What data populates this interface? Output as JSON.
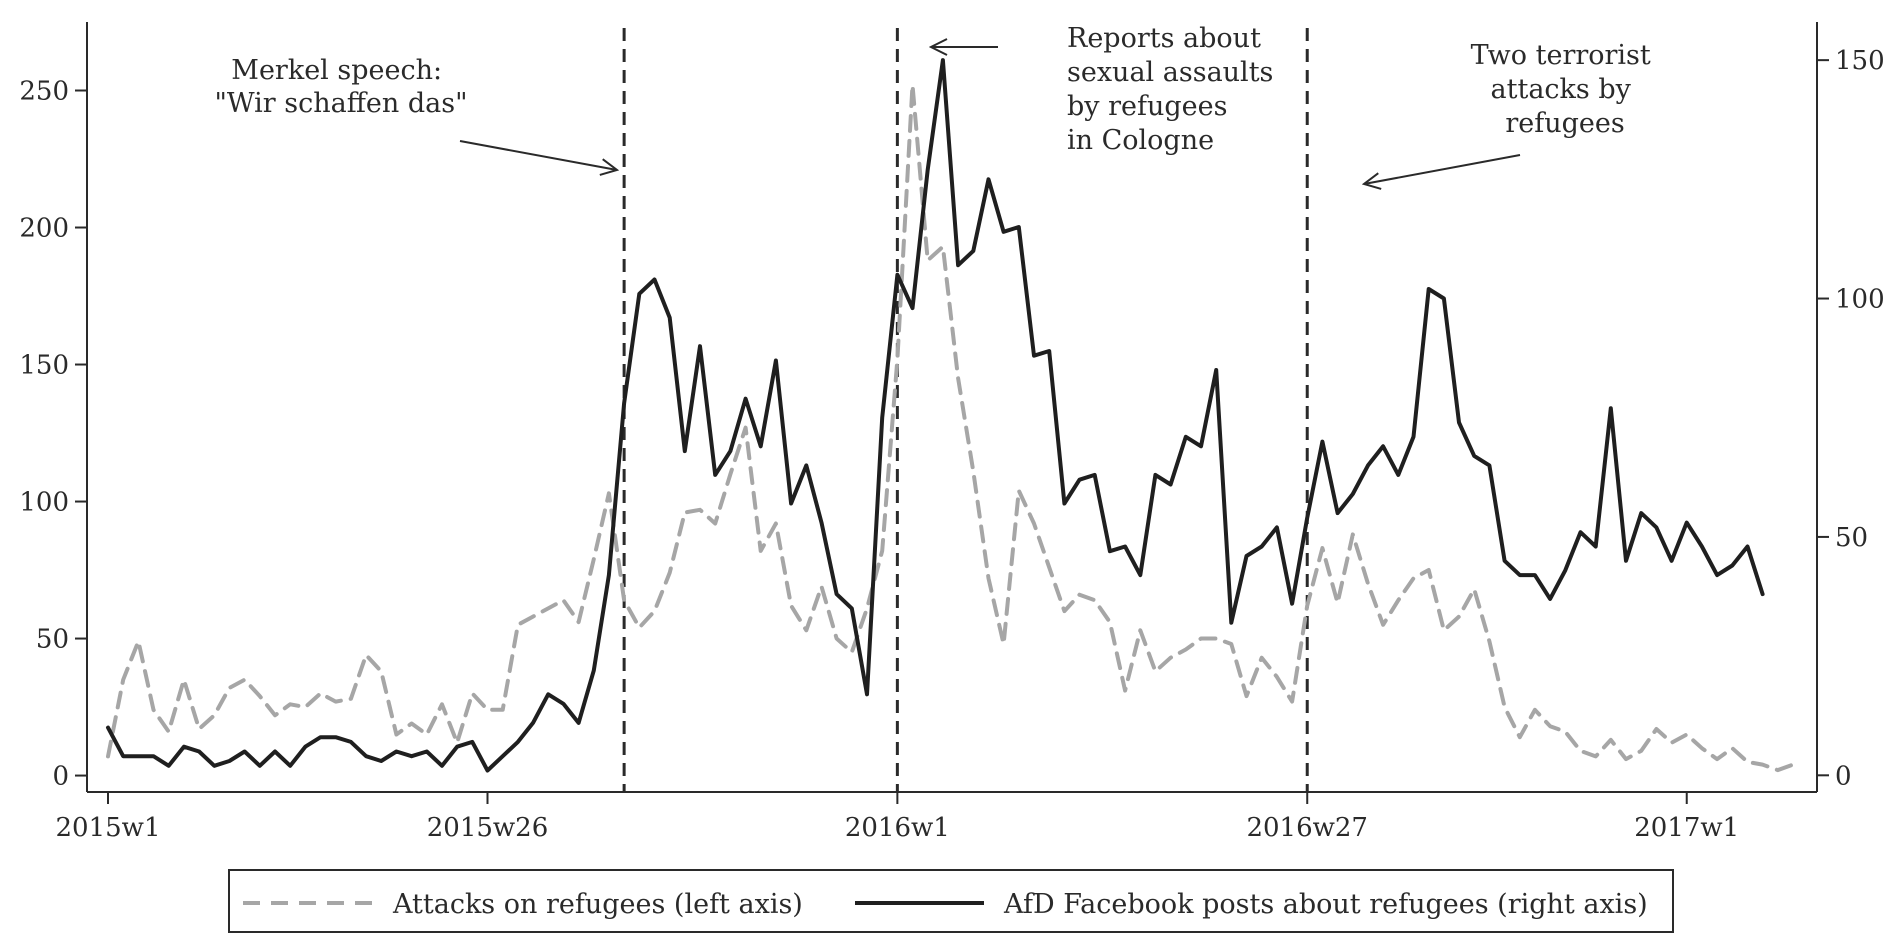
{
  "chart_data": {
    "type": "line",
    "title": "",
    "xlabel": "",
    "ylabel": "",
    "x_tick_labels": [
      "2015w1",
      "2015w26",
      "2016w1",
      "2016w27",
      "2017w1"
    ],
    "x_tick_weeks": [
      1,
      26,
      53,
      80,
      105
    ],
    "xlim": [
      1,
      112
    ],
    "left_axis": {
      "ylim": [
        -6,
        275
      ],
      "ticks": [
        0,
        50,
        100,
        150,
        200,
        250
      ]
    },
    "right_axis": {
      "ylim": [
        -3.5,
        158
      ],
      "ticks": [
        0,
        50,
        100,
        150
      ]
    },
    "grid": false,
    "legend_position": "bottom",
    "series": [
      {
        "name": "Attacks on refugees (left axis)",
        "axis": "left",
        "color": "#a6a6a6",
        "style": "dashed",
        "values": [
          7,
          35,
          49,
          24,
          16,
          35,
          17,
          22,
          32,
          35,
          29,
          22,
          26,
          25,
          30,
          27,
          28,
          44,
          38,
          15,
          19,
          15,
          26,
          12,
          30,
          24,
          24,
          55,
          58,
          61,
          64,
          56,
          79,
          103,
          64,
          54,
          60,
          74,
          96,
          97,
          92,
          110,
          127,
          82,
          92,
          62,
          53,
          69,
          50,
          45,
          61,
          82,
          152,
          252,
          188,
          193,
          145,
          111,
          72,
          48,
          104,
          92,
          76,
          60,
          66,
          64,
          56,
          31,
          53,
          38,
          43,
          46,
          50,
          50,
          48,
          29,
          43,
          36,
          27,
          62,
          83,
          63,
          88,
          70,
          55,
          64,
          72,
          75,
          53,
          58,
          68,
          49,
          25,
          14,
          24,
          18,
          16,
          9,
          7,
          13,
          6,
          9,
          17,
          12,
          15,
          10,
          6,
          10,
          5,
          4,
          2,
          4
        ]
      },
      {
        "name": "AfD Facebook posts about refugees (right axis)",
        "axis": "right",
        "color": "#1f1f1f",
        "style": "solid",
        "values": [
          10,
          4,
          4,
          4,
          2,
          6,
          5,
          2,
          3,
          5,
          2,
          5,
          2,
          6,
          8,
          8,
          7,
          4,
          3,
          5,
          4,
          5,
          2,
          6,
          7,
          1,
          4,
          7,
          11,
          17,
          15,
          11,
          22,
          42,
          78,
          101,
          104,
          96,
          68,
          90,
          63,
          68,
          79,
          69,
          87,
          57,
          65,
          53,
          38,
          35,
          17,
          75,
          105,
          98,
          127,
          150,
          107,
          110,
          125,
          114,
          115,
          88,
          89,
          57,
          62,
          63,
          47,
          48,
          42,
          63,
          61,
          71,
          69,
          85,
          32,
          46,
          48,
          52,
          36,
          54,
          70,
          55,
          59,
          65,
          69,
          63,
          71,
          102,
          100,
          74,
          67,
          65,
          45,
          42,
          42,
          37,
          43,
          51,
          48,
          77,
          45,
          55,
          52,
          45,
          53,
          48,
          42,
          44,
          48,
          38
        ]
      }
    ],
    "vertical_lines": [
      {
        "week": 35,
        "style": "dashed"
      },
      {
        "week": 53,
        "style": "dashed"
      },
      {
        "week": 80,
        "style": "dashed"
      }
    ],
    "annotations": [
      {
        "text": [
          "Merkel speech:",
          "\"Wir schaffen das\""
        ]
      },
      {
        "text": [
          "Reports about",
          "sexual assaults",
          "by refugees",
          "in Cologne"
        ]
      },
      {
        "text": [
          "Two terrorist",
          "attacks by",
          "refugees"
        ]
      }
    ]
  }
}
